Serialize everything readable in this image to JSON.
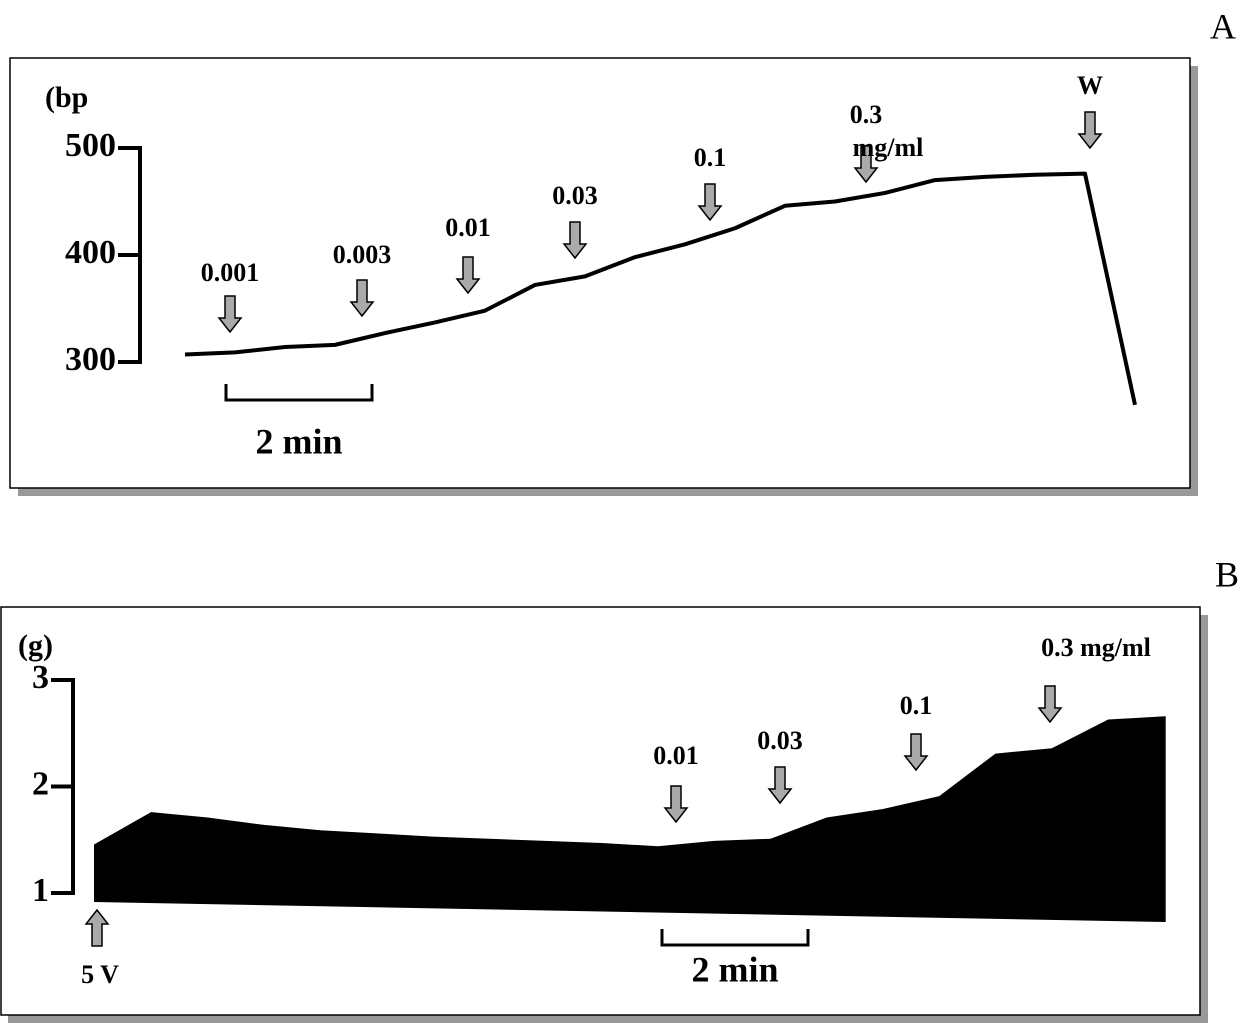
{
  "chart_data": [
    {
      "type": "line",
      "panel": "A",
      "ylabel": "(bp",
      "scale_bar": "2 min",
      "categories": [
        null,
        null,
        null,
        null,
        null,
        null,
        null,
        null,
        null,
        null,
        null,
        null,
        null,
        null,
        null,
        null,
        null,
        null,
        null,
        null
      ],
      "values": [
        307,
        309,
        314,
        316,
        327,
        337,
        348,
        372,
        380,
        398,
        410,
        425,
        446,
        450,
        458,
        470,
        473,
        475,
        476,
        260
      ],
      "color": "#000000",
      "ylim": [
        300,
        500
      ],
      "yticks": [
        300,
        400,
        500
      ],
      "annotations": [
        "0.001",
        "0.003",
        "0.01",
        "0.03",
        "0.1",
        "0.3",
        "mg/ml",
        "W"
      ]
    },
    {
      "type": "area",
      "panel": "B",
      "ylabel": "(g)",
      "scale_bar": "2 min",
      "categories": [
        null,
        null,
        null,
        null,
        null,
        null,
        null,
        null,
        null,
        null,
        null,
        null,
        null,
        null,
        null,
        null,
        null,
        null,
        null,
        null
      ],
      "values": [
        1.45,
        1.75,
        1.7,
        1.63,
        1.58,
        1.55,
        1.52,
        1.5,
        1.48,
        1.46,
        1.43,
        1.48,
        1.5,
        1.7,
        1.78,
        1.9,
        2.3,
        2.35,
        2.62,
        2.65
      ],
      "color": "#000000",
      "ylim": [
        1,
        3
      ],
      "yticks": [
        1,
        2,
        3
      ],
      "annotations": [
        "0.01",
        "0.03",
        "0.1",
        "0.3 mg/ml",
        "5 V"
      ]
    }
  ]
}
